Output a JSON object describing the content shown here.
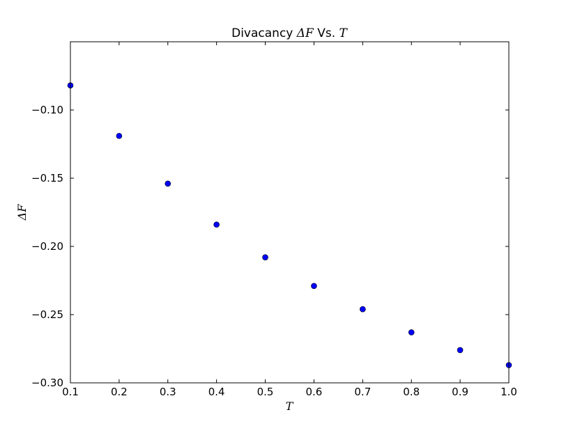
{
  "chart_data": {
    "type": "scatter",
    "title_prefix": "Divacancy ",
    "title_math_1": "ΔF",
    "title_middle": " Vs. ",
    "title_math_2": "T",
    "xlabel": "T",
    "ylabel": "ΔF",
    "xlim": [
      0.1,
      1.0
    ],
    "ylim": [
      -0.3,
      -0.05
    ],
    "x_ticks": [
      {
        "value": 0.1,
        "label": "0.1"
      },
      {
        "value": 0.2,
        "label": "0.2"
      },
      {
        "value": 0.3,
        "label": "0.3"
      },
      {
        "value": 0.4,
        "label": "0.4"
      },
      {
        "value": 0.5,
        "label": "0.5"
      },
      {
        "value": 0.6,
        "label": "0.6"
      },
      {
        "value": 0.7,
        "label": "0.7"
      },
      {
        "value": 0.8,
        "label": "0.8"
      },
      {
        "value": 0.9,
        "label": "0.9"
      },
      {
        "value": 1.0,
        "label": "1.0"
      }
    ],
    "y_ticks": [
      {
        "value": -0.1,
        "label": "−0.10"
      },
      {
        "value": -0.15,
        "label": "−0.15"
      },
      {
        "value": -0.2,
        "label": "−0.20"
      },
      {
        "value": -0.25,
        "label": "−0.25"
      },
      {
        "value": -0.3,
        "label": "−0.30"
      }
    ],
    "grid": false,
    "legend": "none",
    "marker_color": "#0000ff",
    "marker_edge": "#000000",
    "x": [
      0.1,
      0.2,
      0.3,
      0.4,
      0.5,
      0.6,
      0.7,
      0.8,
      0.9,
      1.0
    ],
    "y": [
      -0.082,
      -0.119,
      -0.154,
      -0.184,
      -0.208,
      -0.229,
      -0.246,
      -0.263,
      -0.276,
      -0.287
    ]
  }
}
